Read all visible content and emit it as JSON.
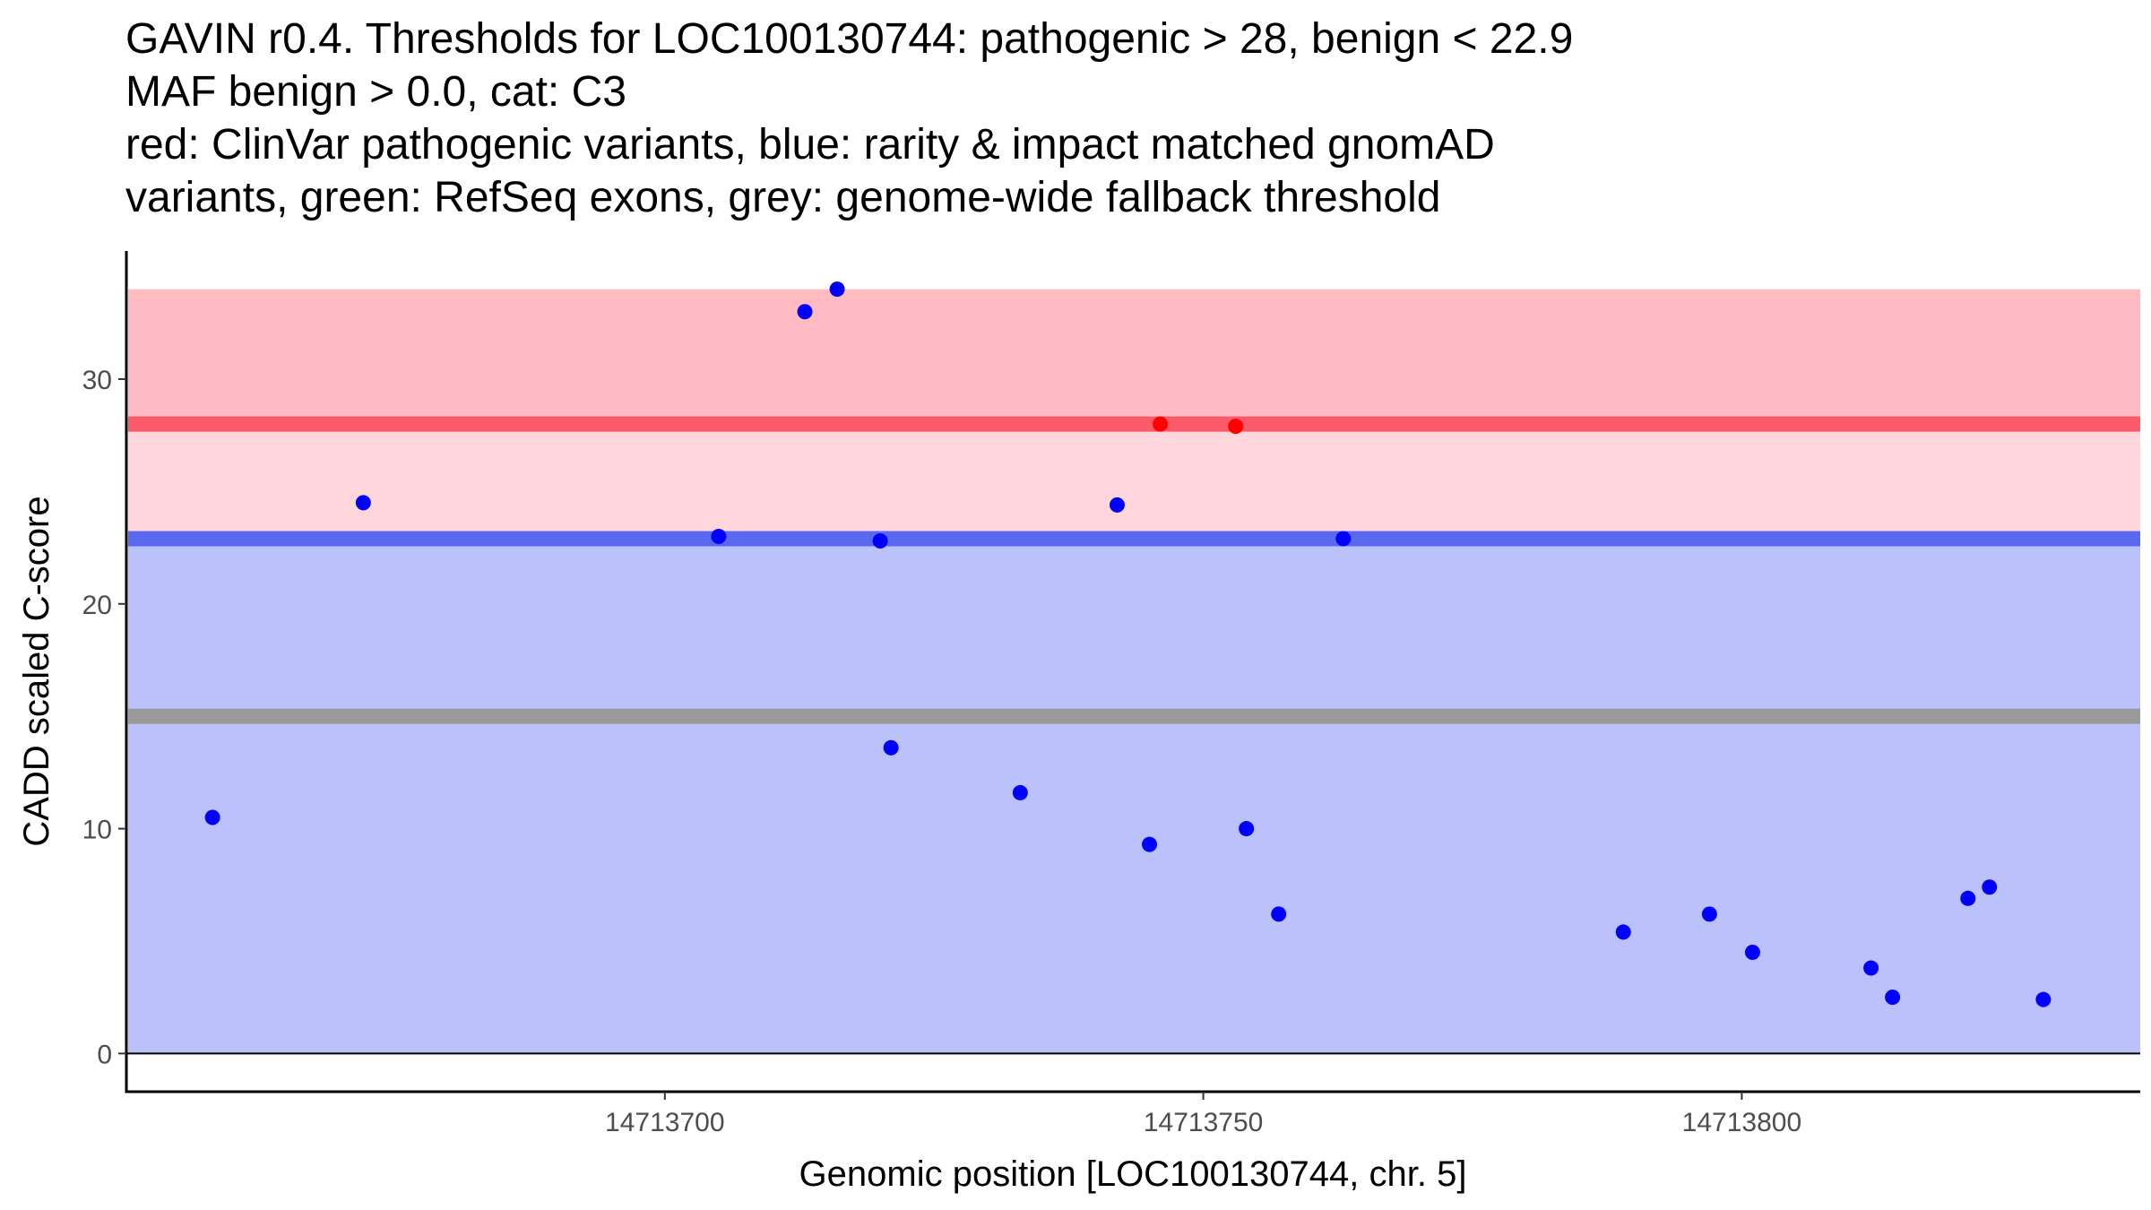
{
  "chart_data": {
    "type": "scatter",
    "title_lines": [
      "GAVIN r0.4. Thresholds for LOC100130744: pathogenic > 28, benign < 22.9",
      "MAF benign > 0.0, cat: C3",
      "red: ClinVar pathogenic variants, blue: rarity & impact matched gnomAD",
      "variants, green: RefSeq exons, grey: genome-wide fallback threshold"
    ],
    "xlabel": "Genomic position [LOC100130744, chr. 5]",
    "ylabel": "CADD scaled C-score",
    "xlim": [
      14713650,
      14713837
    ],
    "ylim": [
      -1.7,
      35.7
    ],
    "x_ticks": [
      14713700,
      14713750,
      14713800
    ],
    "x_tick_labels": [
      "14713700",
      "14713750",
      "14713800"
    ],
    "y_ticks": [
      0,
      10,
      20,
      30
    ],
    "y_tick_labels": [
      "0",
      "10",
      "20",
      "30"
    ],
    "bands": [
      {
        "name": "pathogenic-band-upper",
        "y0": 28,
        "y1": 34,
        "color": "#ffbbc1"
      },
      {
        "name": "pathogenic-band-lower",
        "y0": 22.9,
        "y1": 28,
        "color": "#ffd6db"
      },
      {
        "name": "benign-band",
        "y0": 0,
        "y1": 22.9,
        "color": "#bbc1fb"
      }
    ],
    "threshold_lines": [
      {
        "name": "pathogenic-threshold-line",
        "y": 28,
        "color": "#fb5a68"
      },
      {
        "name": "benign-threshold-line",
        "y": 22.9,
        "color": "#5a68ef"
      },
      {
        "name": "fallback-threshold-line",
        "y": 15,
        "color": "#9a9a9a"
      }
    ],
    "series": [
      {
        "name": "gnomAD",
        "color": "#0000ff",
        "points": [
          [
            14713658,
            10.5
          ],
          [
            14713672,
            24.5
          ],
          [
            14713705,
            23.0
          ],
          [
            14713713,
            33.0
          ],
          [
            14713716,
            34.0
          ],
          [
            14713720,
            22.8
          ],
          [
            14713721,
            13.6
          ],
          [
            14713733,
            11.6
          ],
          [
            14713742,
            24.4
          ],
          [
            14713745,
            9.3
          ],
          [
            14713754,
            10.0
          ],
          [
            14713757,
            6.2
          ],
          [
            14713763,
            22.9
          ],
          [
            14713789,
            5.4
          ],
          [
            14713797,
            6.2
          ],
          [
            14713801,
            4.5
          ],
          [
            14713812,
            3.8
          ],
          [
            14713814,
            2.5
          ],
          [
            14713821,
            6.9
          ],
          [
            14713823,
            7.4
          ],
          [
            14713828,
            2.4
          ]
        ]
      },
      {
        "name": "ClinVar pathogenic",
        "color": "#ff0000",
        "points": [
          [
            14713746,
            28.0
          ],
          [
            14713753,
            27.9
          ]
        ]
      }
    ]
  }
}
